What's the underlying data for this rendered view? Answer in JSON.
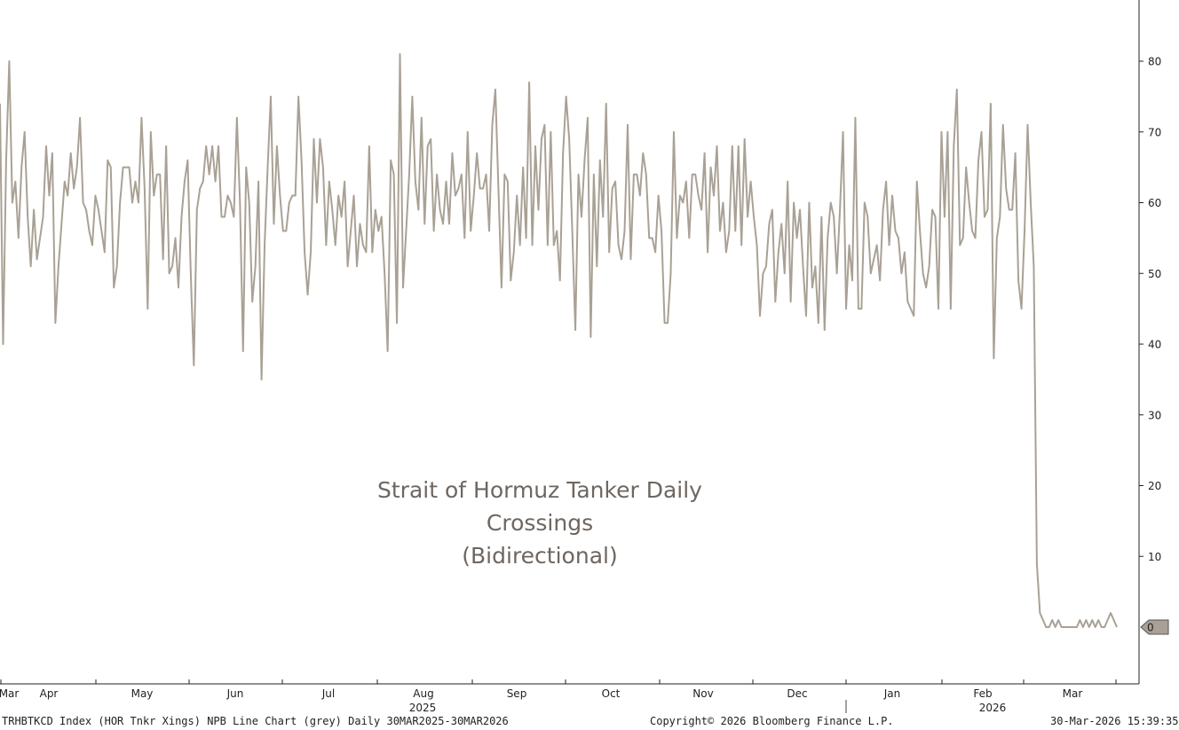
{
  "chart_data": {
    "type": "line",
    "title": "Strait of Hormuz Tanker Daily Crossings",
    "subtitle": "(Bidirectional)",
    "series": [
      {
        "values": [
          74,
          40,
          66,
          80,
          60,
          63,
          55,
          65,
          70,
          58,
          51,
          59,
          52,
          55,
          58,
          68,
          61,
          67,
          43,
          51,
          57,
          63,
          61,
          67,
          62,
          65,
          72,
          60,
          59,
          56,
          54,
          61,
          59,
          56,
          53,
          66,
          65,
          48,
          51,
          60,
          65,
          65,
          65,
          60,
          63,
          60,
          72,
          62,
          45,
          70,
          61,
          64,
          64,
          52,
          68,
          50,
          51,
          55,
          48,
          58,
          63,
          66,
          50,
          37,
          59,
          62,
          63,
          68,
          64,
          68,
          63,
          68,
          58,
          58,
          61,
          60,
          58,
          72,
          60,
          39,
          65,
          60,
          46,
          51,
          63,
          35,
          54,
          65,
          75,
          57,
          68,
          61,
          56,
          56,
          60,
          61,
          61,
          75,
          66,
          53,
          47,
          53,
          69,
          60,
          69,
          65,
          54,
          63,
          59,
          54,
          61,
          58,
          63,
          51,
          56,
          61,
          51,
          57,
          54,
          53,
          68,
          53,
          59,
          56,
          58,
          50,
          39,
          66,
          64,
          43,
          81,
          48,
          56,
          64,
          75,
          63,
          59,
          72,
          57,
          68,
          69,
          56,
          64,
          59,
          57,
          63,
          57,
          67,
          61,
          62,
          64,
          55,
          70,
          56,
          61,
          67,
          62,
          62,
          64,
          56,
          71,
          76,
          62,
          48,
          64,
          63,
          49,
          53,
          61,
          54,
          65,
          55,
          77,
          54,
          68,
          59,
          69,
          71,
          54,
          70,
          54,
          56,
          49,
          67,
          75,
          69,
          56,
          42,
          64,
          58,
          66,
          72,
          41,
          64,
          51,
          66,
          58,
          74,
          53,
          62,
          63,
          54,
          52,
          56,
          71,
          52,
          64,
          64,
          61,
          67,
          64,
          55,
          55,
          53,
          61,
          56,
          43,
          43,
          50,
          70,
          55,
          61,
          60,
          63,
          55,
          64,
          64,
          61,
          59,
          67,
          53,
          65,
          61,
          68,
          56,
          60,
          53,
          56,
          68,
          56,
          68,
          54,
          69,
          58,
          63,
          58,
          54,
          44,
          50,
          51,
          57,
          59,
          46,
          53,
          57,
          50,
          63,
          46,
          60,
          55,
          59,
          51,
          44,
          60,
          48,
          51,
          43,
          58,
          42,
          55,
          60,
          58,
          50,
          59,
          70,
          45,
          54,
          49,
          72,
          45,
          45,
          60,
          58,
          50,
          52,
          54,
          49,
          59,
          63,
          54,
          61,
          56,
          55,
          50,
          53,
          46,
          45,
          44,
          63,
          56,
          50,
          48,
          51,
          59,
          58,
          45,
          70,
          58,
          70,
          45,
          68,
          76,
          54,
          55,
          65,
          60,
          56,
          55,
          66,
          70,
          58,
          59,
          74,
          38,
          55,
          58,
          71,
          62,
          59,
          59,
          67,
          49,
          45,
          56,
          71,
          60,
          51,
          9,
          2,
          1,
          0,
          0,
          1,
          0,
          1,
          0,
          0,
          0,
          0,
          0,
          0,
          1,
          0,
          1,
          0,
          1,
          0,
          1,
          0,
          0,
          1,
          2,
          1,
          0
        ],
        "color": "#a9a195"
      }
    ],
    "x_start": "30MAR2025",
    "x_end": "30MAR2026",
    "x_tick_labels": [
      "Mar",
      "Apr",
      "May",
      "Jun",
      "Jul",
      "Aug",
      "Sep",
      "Oct",
      "Nov",
      "Dec",
      "Jan",
      "Feb",
      "Mar"
    ],
    "year_labels": [
      "2025",
      "2026"
    ],
    "y_ticks": [
      80,
      70,
      60,
      50,
      40,
      30,
      20,
      10
    ],
    "y_range": [
      -8,
      89
    ],
    "last_value_label": "0",
    "grid": false,
    "legend": "none"
  },
  "footer": {
    "left": "TRHBTKCD Index (HOR Tnkr Xings) NPB Line Chart (grey) Daily 30MAR2025-30MAR2026",
    "center": "Copyright© 2026 Bloomberg Finance L.P.",
    "right": "30-Mar-2026 15:39:35"
  }
}
